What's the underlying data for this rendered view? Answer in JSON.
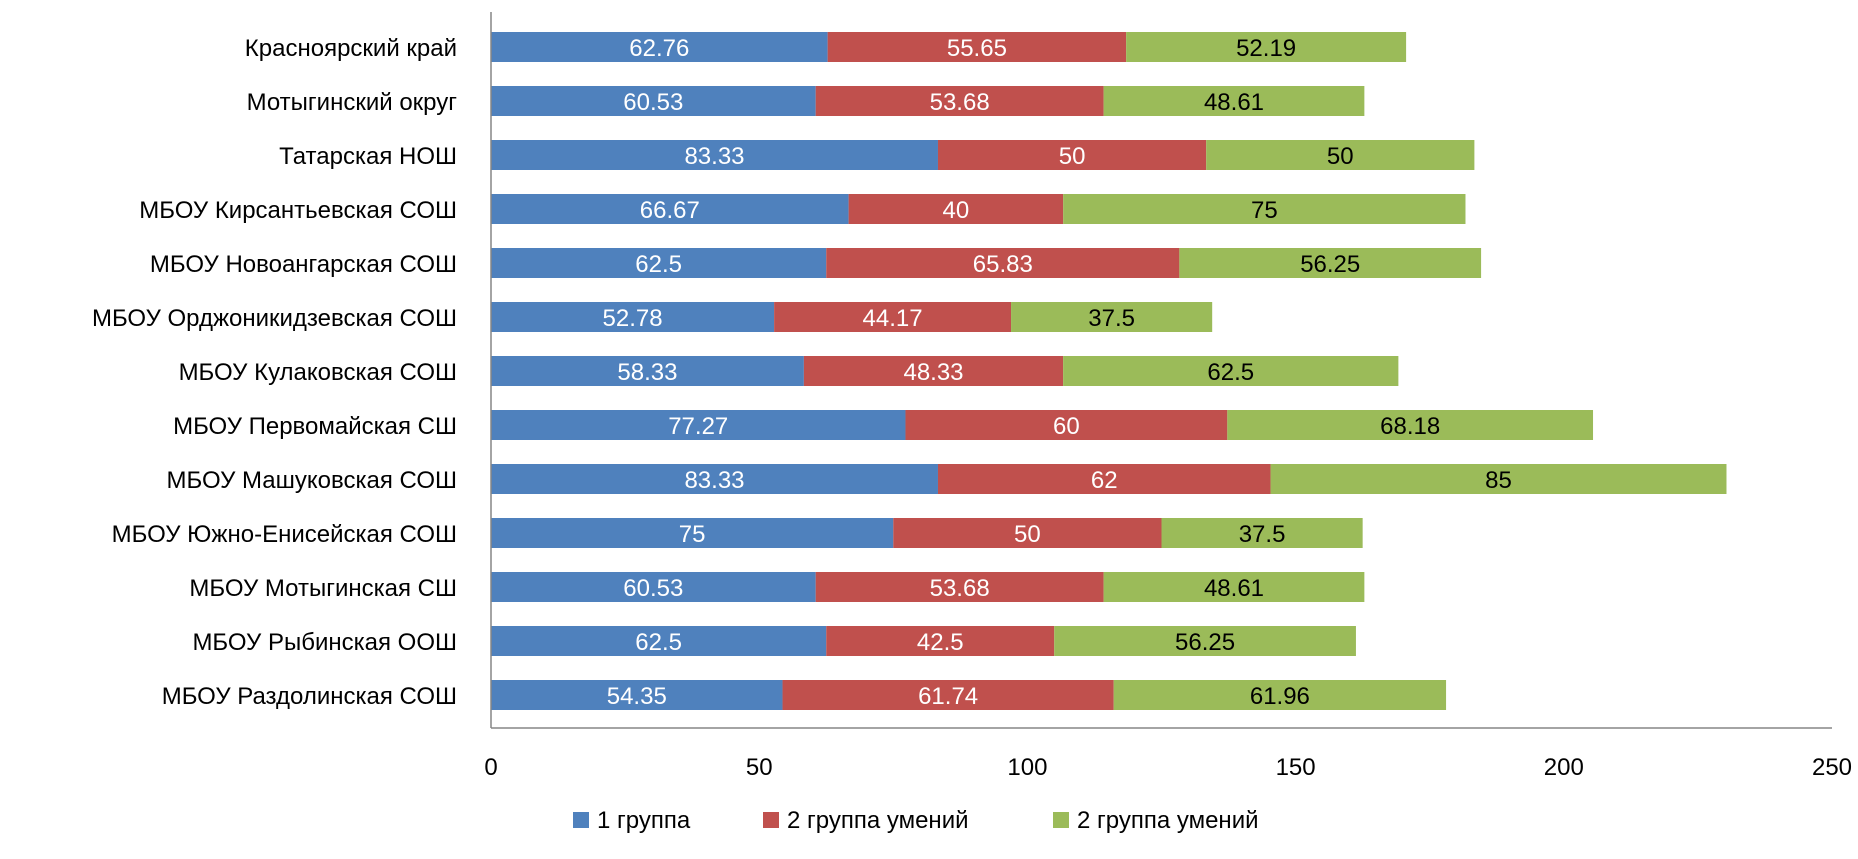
{
  "chart_data": {
    "type": "bar",
    "orientation": "horizontal",
    "stacked": true,
    "categories": [
      "Красноярский край",
      "Мотыгинский округ",
      "Татарская НОШ",
      "МБОУ Кирсантьевская СОШ",
      "МБОУ Новоангарская СОШ",
      "МБОУ Орджоникидзевская СОШ",
      "МБОУ Кулаковская СОШ",
      "МБОУ Первомайская СШ",
      "МБОУ Машуковская СОШ",
      "МБОУ Южно-Енисейская СОШ",
      "МБОУ Мотыгинская СШ",
      "МБОУ Рыбинская ООШ",
      "МБОУ Раздолинская СОШ"
    ],
    "series": [
      {
        "name": "1 группа",
        "color": "#4F81BD",
        "label_color": "#ffffff",
        "values": [
          62.76,
          60.53,
          83.33,
          66.67,
          62.5,
          52.78,
          58.33,
          77.27,
          83.33,
          75,
          60.53,
          62.5,
          54.35
        ],
        "labels": [
          "62.76",
          "60.53",
          "83.33",
          "66.67",
          "62.5",
          "52.78",
          "58.33",
          "77.27",
          "83.33",
          "75",
          "60.53",
          "62.5",
          "54.35"
        ]
      },
      {
        "name": "2 группа умений",
        "color": "#C0504D",
        "label_color": "#ffffff",
        "values": [
          55.65,
          53.68,
          50,
          40,
          65.83,
          44.17,
          48.33,
          60,
          62,
          50,
          53.68,
          42.5,
          61.74
        ],
        "labels": [
          "55.65",
          "53.68",
          "50",
          "40",
          "65.83",
          "44.17",
          "48.33",
          "60",
          "62",
          "50",
          "53.68",
          "42.5",
          "61.74"
        ]
      },
      {
        "name": "2 группа умений",
        "color": "#9BBB59",
        "label_color": "#000000",
        "values": [
          52.19,
          48.61,
          50,
          75,
          56.25,
          37.5,
          62.5,
          68.18,
          85,
          37.5,
          48.61,
          56.25,
          61.96
        ],
        "labels": [
          "52.19",
          "48.61",
          "50",
          "75",
          "56.25",
          "37.5",
          "62.5",
          "68.18",
          "85",
          "37.5",
          "48.61",
          "56.25",
          "61.96"
        ]
      }
    ],
    "xlim": [
      0,
      250
    ],
    "xticks": [
      "0",
      "50",
      "100",
      "150",
      "200",
      "250"
    ],
    "grid": false,
    "legend_position": "bottom"
  }
}
